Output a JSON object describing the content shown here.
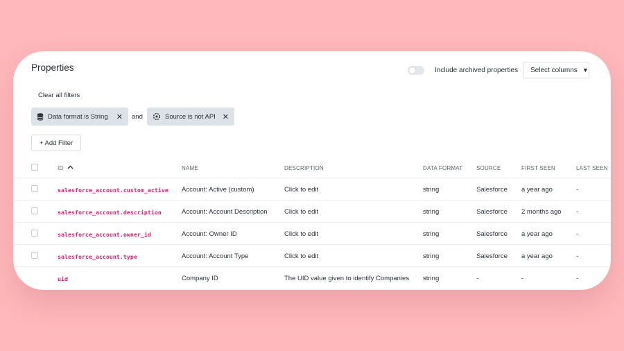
{
  "header": {
    "title": "Properties",
    "archived_label": "Include archived properties",
    "select_columns_label": "Select columns",
    "select_columns_caret": "▼"
  },
  "filters": {
    "clear_label": "Clear all filters",
    "chips": [
      {
        "label": "Data format is String",
        "remove": "✕"
      },
      {
        "label": "Source is not API",
        "remove": "✕"
      }
    ],
    "joiner": "and",
    "add_label": "+ Add Filter"
  },
  "table": {
    "columns": {
      "id": "ID",
      "id_sort": "^",
      "name": "NAME",
      "description": "DESCRIPTION",
      "data_format": "DATA FORMAT",
      "source": "SOURCE",
      "first_seen": "FIRST SEEN",
      "last_seen": "LAST SEEN"
    },
    "rows": [
      {
        "id": "salesforce_account.custom_active",
        "name": "Account: Active (custom)",
        "description": "Click to edit",
        "data_format": "string",
        "source": "Salesforce",
        "first_seen": "a year ago",
        "last_seen": "-"
      },
      {
        "id": "salesforce_account.description",
        "name": "Account: Account Description",
        "description": "Click to edit",
        "data_format": "string",
        "source": "Salesforce",
        "first_seen": "2 months ago",
        "last_seen": "-"
      },
      {
        "id": "salesforce_account.owner_id",
        "name": "Account: Owner ID",
        "description": "Click to edit",
        "data_format": "string",
        "source": "Salesforce",
        "first_seen": "a year ago",
        "last_seen": "-"
      },
      {
        "id": "salesforce_account.type",
        "name": "Account: Account Type",
        "description": "Click to edit",
        "data_format": "string",
        "source": "Salesforce",
        "first_seen": "a year ago",
        "last_seen": "-"
      },
      {
        "id": "uid",
        "name": "Company ID",
        "description": "The UID value given to identify Companies",
        "data_format": "string",
        "source": "-",
        "first_seen": "-",
        "last_seen": "-"
      }
    ]
  },
  "colors": {
    "background": "#ffb8bb",
    "id_text": "#d6246e",
    "chip_bg": "#dde1e8"
  },
  "icons": [
    "database-icon",
    "plug-icon",
    "close-icon",
    "caret-down-icon",
    "sort-up-icon",
    "checkbox-icon"
  ]
}
